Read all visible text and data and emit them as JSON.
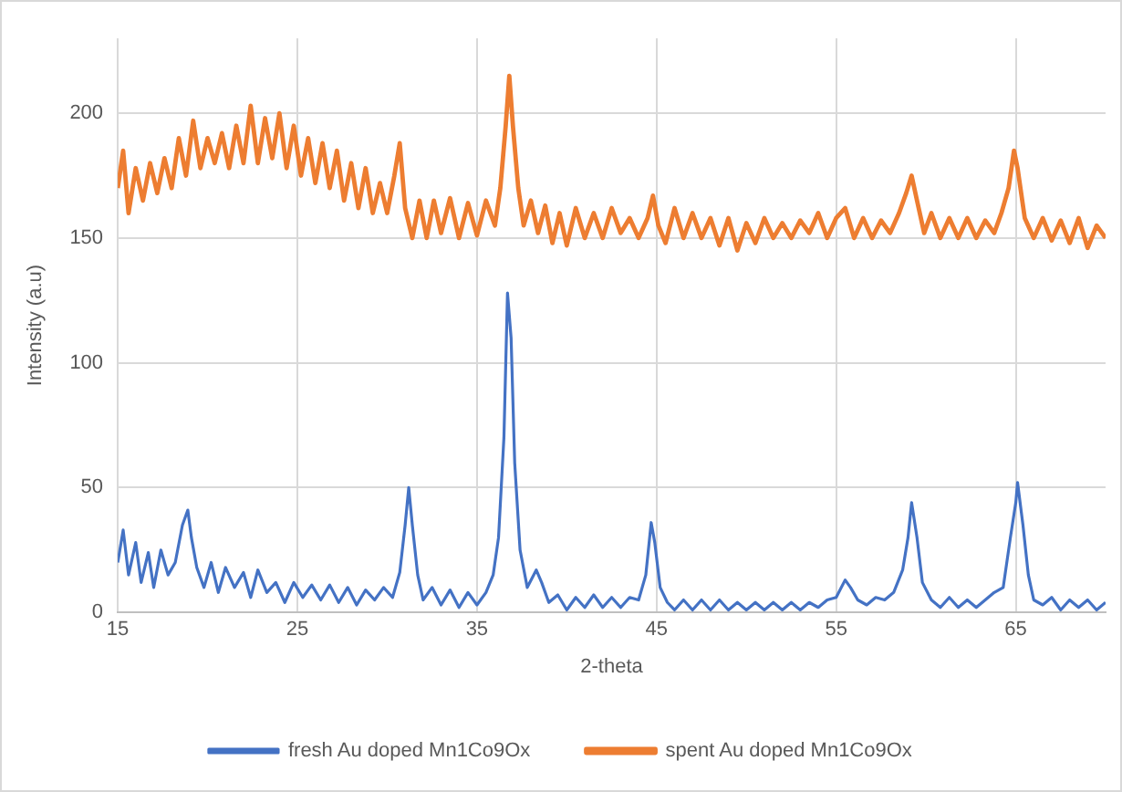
{
  "chart_data": {
    "type": "line",
    "xlabel": "2-theta",
    "ylabel": "Intensity (a.u)",
    "xlim": [
      15,
      70
    ],
    "xticks": [
      15,
      25,
      35,
      45,
      55,
      65
    ],
    "ylim": [
      0,
      230
    ],
    "yticks": [
      0,
      50,
      100,
      150,
      200
    ],
    "grid": true,
    "legend": "bottom",
    "marker": "none",
    "line_style": "solid",
    "series": [
      {
        "name": "fresh Au doped Mn1Co9Ox",
        "color": "#4472c4",
        "x": [
          15,
          15.3,
          15.6,
          16,
          16.3,
          16.7,
          17,
          17.4,
          17.8,
          18.2,
          18.6,
          18.9,
          19.1,
          19.4,
          19.8,
          20.2,
          20.6,
          21,
          21.5,
          22,
          22.4,
          22.8,
          23.3,
          23.8,
          24.3,
          24.8,
          25.3,
          25.8,
          26.3,
          26.8,
          27.3,
          27.8,
          28.3,
          28.8,
          29.3,
          29.8,
          30.3,
          30.7,
          31,
          31.2,
          31.4,
          31.7,
          32,
          32.5,
          33,
          33.5,
          34,
          34.5,
          35,
          35.5,
          35.9,
          36.2,
          36.5,
          36.7,
          36.9,
          37.1,
          37.4,
          37.8,
          38.3,
          38.6,
          39,
          39.5,
          40,
          40.5,
          41,
          41.5,
          42,
          42.5,
          43,
          43.5,
          44,
          44.4,
          44.7,
          44.9,
          45.2,
          45.6,
          46,
          46.5,
          47,
          47.5,
          48,
          48.5,
          49,
          49.5,
          50,
          50.5,
          51,
          51.5,
          52,
          52.5,
          53,
          53.5,
          54,
          54.5,
          55,
          55.5,
          55.8,
          56.2,
          56.7,
          57.2,
          57.7,
          58.2,
          58.7,
          59,
          59.2,
          59.5,
          59.8,
          60.3,
          60.8,
          61.3,
          61.8,
          62.3,
          62.8,
          63.3,
          63.8,
          64.3,
          64.7,
          65,
          65.1,
          65.4,
          65.7,
          66,
          66.5,
          67,
          67.5,
          68,
          68.5,
          69,
          69.5,
          70
        ],
        "values": [
          20,
          33,
          15,
          28,
          12,
          24,
          10,
          25,
          15,
          20,
          35,
          41,
          30,
          18,
          10,
          20,
          8,
          18,
          10,
          16,
          6,
          17,
          8,
          12,
          4,
          12,
          6,
          11,
          5,
          11,
          4,
          10,
          3,
          9,
          5,
          10,
          6,
          16,
          35,
          50,
          35,
          15,
          5,
          10,
          3,
          9,
          2,
          8,
          3,
          8,
          15,
          30,
          70,
          128,
          110,
          60,
          25,
          10,
          17,
          12,
          4,
          7,
          1,
          6,
          2,
          7,
          2,
          6,
          2,
          6,
          5,
          15,
          36,
          28,
          10,
          4,
          1,
          5,
          1,
          5,
          1,
          5,
          1,
          4,
          1,
          4,
          1,
          4,
          1,
          4,
          1,
          4,
          2,
          5,
          6,
          13,
          10,
          5,
          3,
          6,
          5,
          8,
          17,
          30,
          44,
          30,
          12,
          5,
          2,
          6,
          2,
          5,
          2,
          5,
          8,
          10,
          30,
          44,
          52,
          35,
          15,
          5,
          3,
          6,
          1,
          5,
          2,
          5,
          1,
          4
        ]
      },
      {
        "name": "spent Au doped Mn1Co9Ox",
        "color": "#ed7d31",
        "x": [
          15,
          15.3,
          15.6,
          16,
          16.4,
          16.8,
          17.2,
          17.6,
          18,
          18.4,
          18.8,
          19.2,
          19.6,
          20,
          20.4,
          20.8,
          21.2,
          21.6,
          22,
          22.4,
          22.8,
          23.2,
          23.6,
          24,
          24.4,
          24.8,
          25.2,
          25.6,
          26,
          26.4,
          26.8,
          27.2,
          27.6,
          28,
          28.4,
          28.8,
          29.2,
          29.6,
          30,
          30.4,
          30.7,
          31,
          31.4,
          31.8,
          32.2,
          32.6,
          33,
          33.5,
          34,
          34.5,
          35,
          35.5,
          36,
          36.3,
          36.6,
          36.8,
          37,
          37.3,
          37.6,
          38,
          38.4,
          38.8,
          39.2,
          39.6,
          40,
          40.5,
          41,
          41.5,
          42,
          42.5,
          43,
          43.5,
          44,
          44.5,
          44.8,
          45.1,
          45.5,
          46,
          46.5,
          47,
          47.5,
          48,
          48.5,
          49,
          49.5,
          50,
          50.5,
          51,
          51.5,
          52,
          52.5,
          53,
          53.5,
          54,
          54.5,
          55,
          55.5,
          56,
          56.5,
          57,
          57.5,
          58,
          58.5,
          58.9,
          59.2,
          59.5,
          59.9,
          60.3,
          60.8,
          61.3,
          61.8,
          62.3,
          62.8,
          63.3,
          63.8,
          64.2,
          64.6,
          64.9,
          65.1,
          65.5,
          66,
          66.5,
          67,
          67.5,
          68,
          68.5,
          69,
          69.5,
          70
        ],
        "values": [
          170,
          185,
          160,
          178,
          165,
          180,
          168,
          182,
          170,
          190,
          175,
          197,
          178,
          190,
          180,
          192,
          178,
          195,
          180,
          203,
          180,
          198,
          182,
          200,
          178,
          195,
          175,
          190,
          172,
          188,
          170,
          185,
          165,
          180,
          162,
          178,
          160,
          172,
          160,
          175,
          188,
          162,
          150,
          165,
          150,
          165,
          152,
          166,
          150,
          164,
          151,
          165,
          155,
          170,
          195,
          215,
          195,
          170,
          155,
          165,
          152,
          163,
          148,
          160,
          147,
          162,
          150,
          160,
          150,
          162,
          152,
          158,
          150,
          158,
          167,
          155,
          148,
          162,
          150,
          160,
          150,
          158,
          147,
          158,
          145,
          156,
          148,
          158,
          150,
          156,
          150,
          157,
          152,
          160,
          150,
          158,
          162,
          150,
          158,
          150,
          157,
          152,
          160,
          168,
          175,
          165,
          152,
          160,
          150,
          158,
          150,
          158,
          150,
          157,
          152,
          160,
          170,
          185,
          178,
          158,
          150,
          158,
          149,
          157,
          148,
          158,
          146,
          155,
          150
        ]
      }
    ]
  }
}
